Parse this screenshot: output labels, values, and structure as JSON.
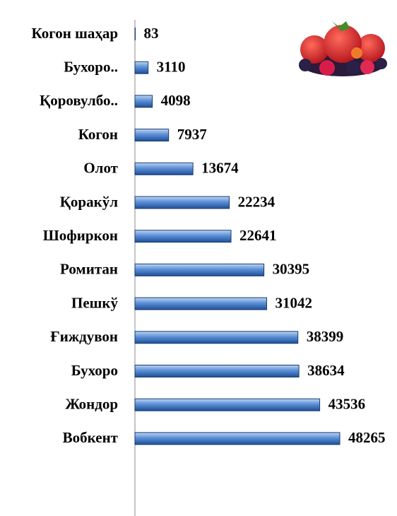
{
  "chart_data": {
    "type": "bar",
    "orientation": "horizontal",
    "categories": [
      "Когон шаҳар",
      "Бухоро..",
      "Қоровулбо..",
      "Когон",
      "Олот",
      "Қоракўл",
      "Шофиркон",
      "Ромитан",
      "Пешкў",
      "Ғиждувон",
      "Бухоро",
      "Жондор",
      "Вобкент"
    ],
    "values": [
      83,
      3110,
      4098,
      7937,
      13674,
      22234,
      22641,
      30395,
      31042,
      38399,
      38634,
      43536,
      48265
    ],
    "color": "#4a7fc9"
  }
}
